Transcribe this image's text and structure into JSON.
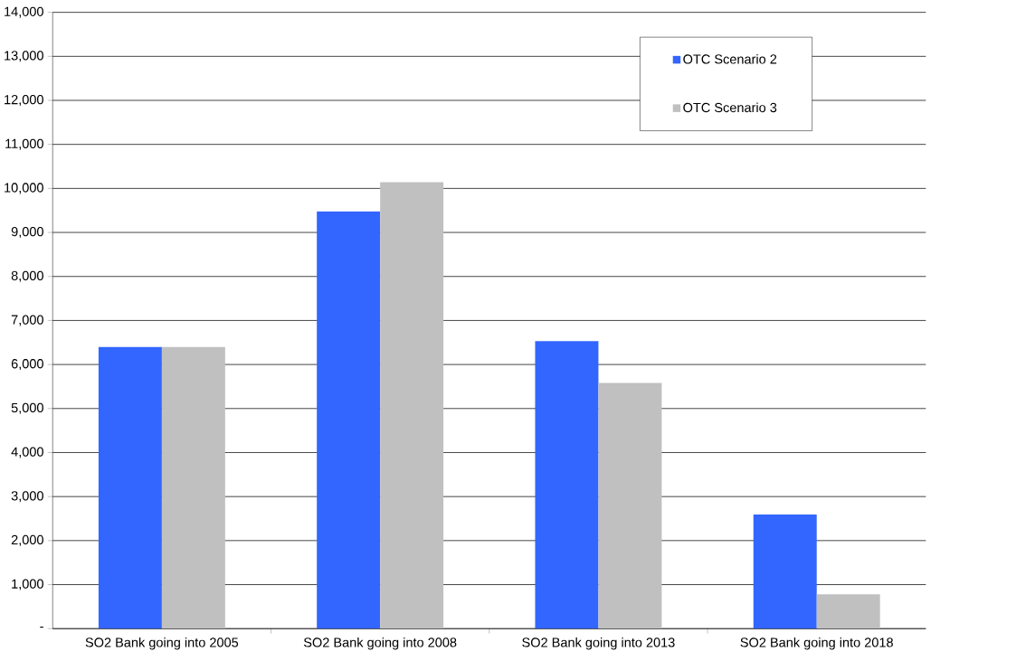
{
  "chart_data": {
    "type": "bar",
    "categories": [
      "SO2 Bank going into 2005",
      "SO2 Bank going into 2008",
      "SO2 Bank going into 2013",
      "SO2 Bank going into 2018"
    ],
    "series": [
      {
        "name": "OTC Scenario 2",
        "color": "#3366ff",
        "values": [
          6400,
          9480,
          6530,
          2590
        ]
      },
      {
        "name": "OTC Scenario 3",
        "color": "#c0c0c0",
        "values": [
          6400,
          10140,
          5580,
          780
        ]
      }
    ],
    "ylim": [
      0,
      14000
    ],
    "yticks": [
      {
        "value": 0,
        "label": "-"
      },
      {
        "value": 1000,
        "label": "1,000"
      },
      {
        "value": 2000,
        "label": "2,000"
      },
      {
        "value": 3000,
        "label": "3,000"
      },
      {
        "value": 4000,
        "label": "4,000"
      },
      {
        "value": 5000,
        "label": "5,000"
      },
      {
        "value": 6000,
        "label": "6,000"
      },
      {
        "value": 7000,
        "label": "7,000"
      },
      {
        "value": 8000,
        "label": "8,000"
      },
      {
        "value": 9000,
        "label": "9,000"
      },
      {
        "value": 10000,
        "label": "10,000"
      },
      {
        "value": 11000,
        "label": "11,000"
      },
      {
        "value": 12000,
        "label": "12,000"
      },
      {
        "value": 13000,
        "label": "13,000"
      },
      {
        "value": 14000,
        "label": "14,000"
      }
    ],
    "grid": "y",
    "legend": "top right"
  }
}
